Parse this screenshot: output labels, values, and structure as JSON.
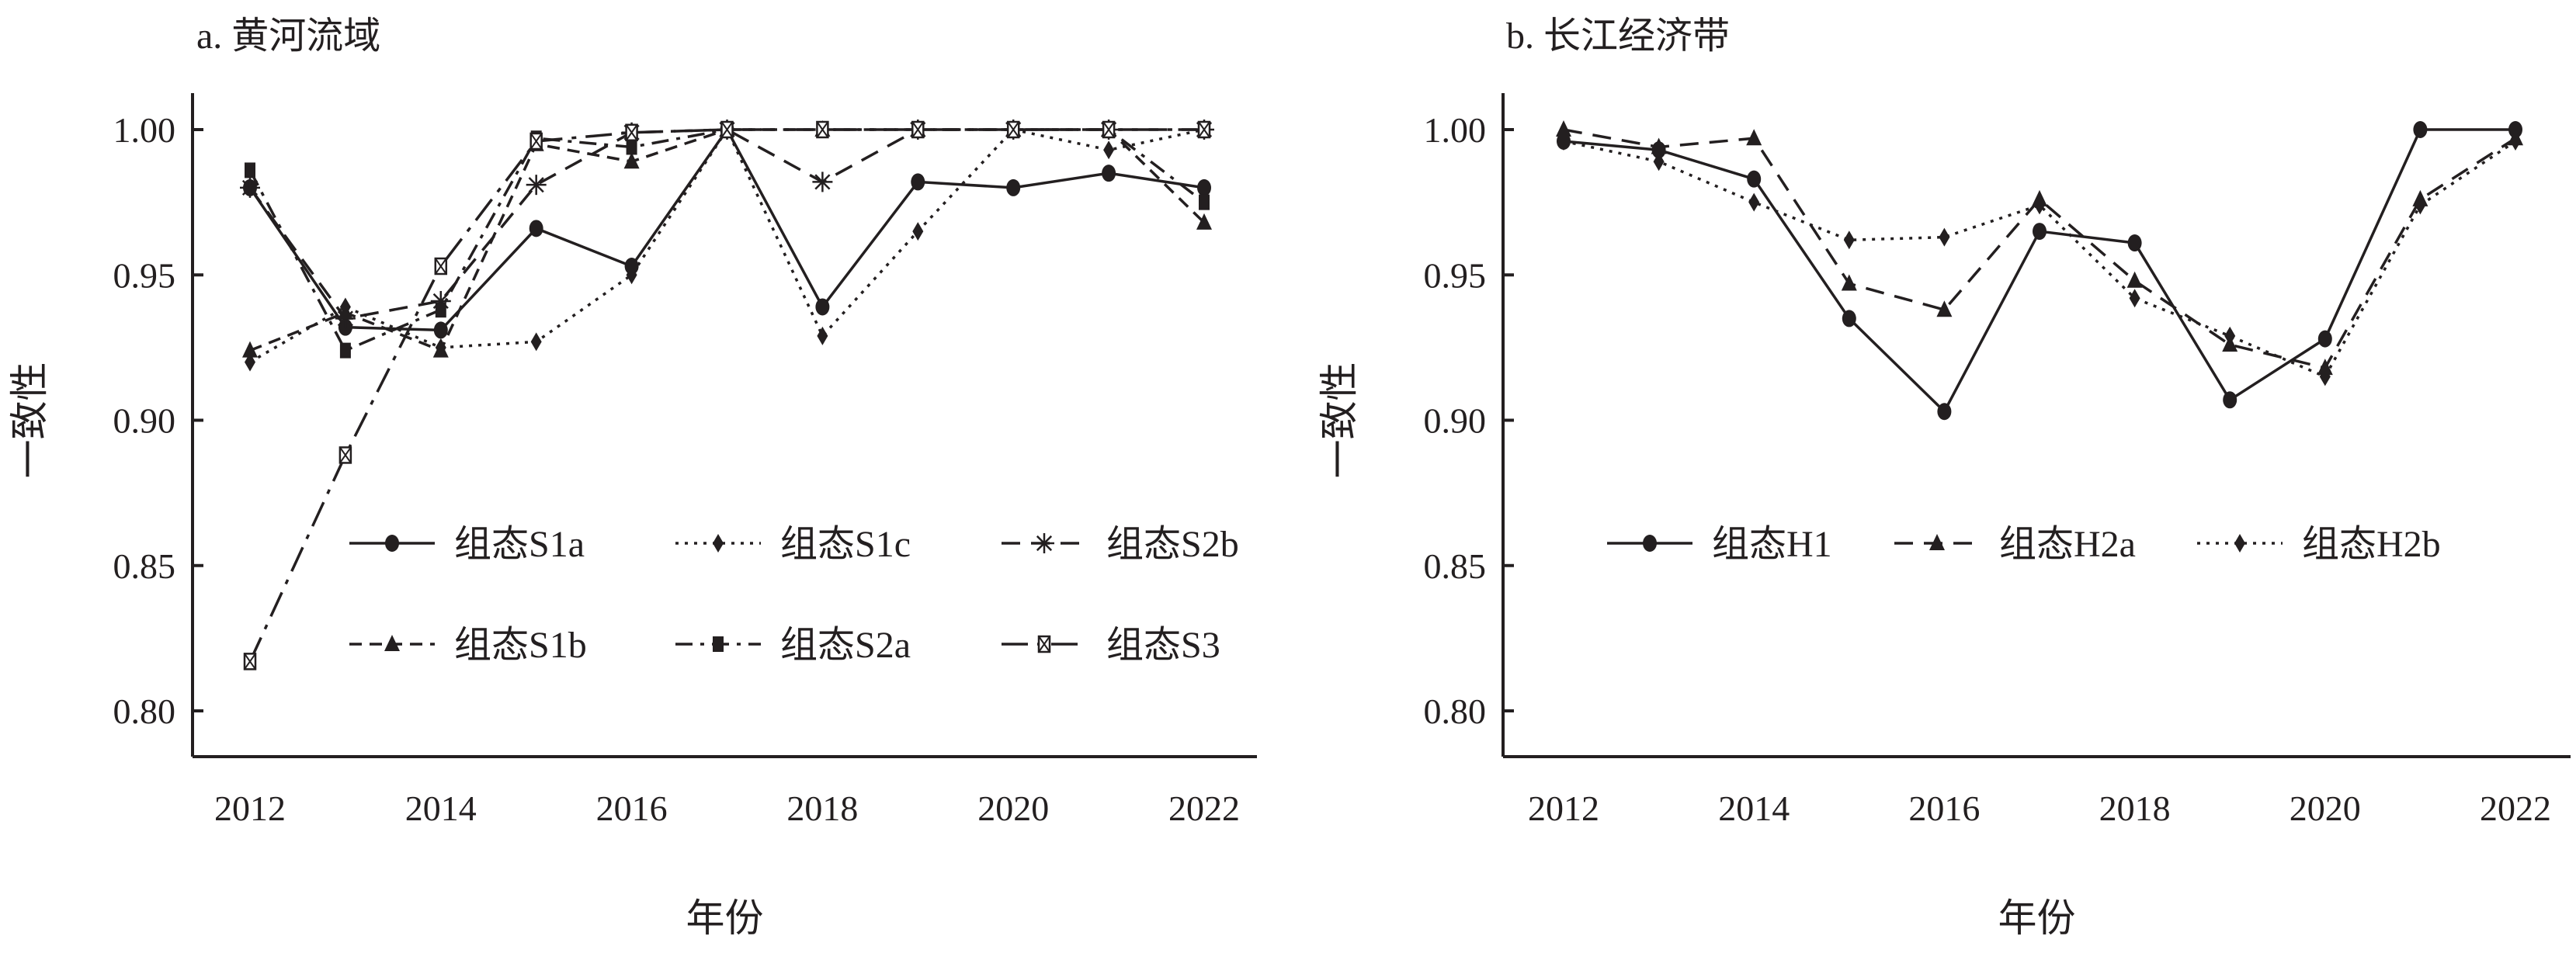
{
  "chart_data": [
    {
      "type": "line",
      "title": "a. 黄河流域",
      "xlabel": "年份",
      "ylabel": "一致性",
      "ylim": [
        0.79,
        1.02
      ],
      "yticks": [
        "0.80",
        "0.85",
        "0.90",
        "0.95",
        "1.00"
      ],
      "xticks": [
        "2012",
        "2014",
        "2016",
        "2018",
        "2020",
        "2022"
      ],
      "x": [
        2012,
        2013,
        2014,
        2015,
        2016,
        2017,
        2018,
        2019,
        2020,
        2021,
        2022
      ],
      "legend_position": "center-right",
      "series": [
        {
          "name": "组态S1a",
          "marker": "circle",
          "dash": "solid",
          "values": [
            0.98,
            0.932,
            0.931,
            0.966,
            0.953,
            1.0,
            0.939,
            0.982,
            0.98,
            0.985,
            0.98
          ]
        },
        {
          "name": "组态S1c",
          "marker": "diamond",
          "dash": "dotted",
          "values": [
            0.92,
            0.939,
            0.925,
            0.927,
            0.95,
            1.0,
            0.929,
            0.965,
            1.0,
            0.993,
            1.0
          ]
        },
        {
          "name": "组态S2b",
          "marker": "star",
          "dash": "dashed",
          "values": [
            0.98,
            0.935,
            0.941,
            0.981,
            0.999,
            1.0,
            0.982,
            1.0,
            1.0,
            1.0,
            1.0
          ]
        },
        {
          "name": "组态S1b",
          "marker": "triangle",
          "dash": "shortdash",
          "values": [
            0.924,
            0.937,
            0.924,
            0.995,
            0.989,
            1.0,
            1.0,
            1.0,
            1.0,
            1.0,
            0.968
          ]
        },
        {
          "name": "组态S2a",
          "marker": "square",
          "dash": "dashdot",
          "values": [
            0.986,
            0.924,
            0.938,
            0.997,
            0.994,
            1.0,
            1.0,
            1.0,
            1.0,
            1.0,
            0.975
          ]
        },
        {
          "name": "组态S3",
          "marker": "boxx",
          "dash": "longdashdot",
          "values": [
            0.817,
            0.888,
            0.953,
            0.996,
            0.999,
            1.0,
            1.0,
            1.0,
            1.0,
            1.0,
            1.0
          ]
        }
      ]
    },
    {
      "type": "line",
      "title": "b. 长江经济带",
      "xlabel": "年份",
      "ylabel": "一致性",
      "ylim": [
        0.79,
        1.02
      ],
      "yticks": [
        "0.80",
        "0.85",
        "0.90",
        "0.95",
        "1.00"
      ],
      "xticks": [
        "2012",
        "2014",
        "2016",
        "2018",
        "2020",
        "2022"
      ],
      "x": [
        2012,
        2013,
        2014,
        2015,
        2016,
        2017,
        2018,
        2019,
        2020,
        2021,
        2022
      ],
      "legend_position": "center",
      "series": [
        {
          "name": "组态H1",
          "marker": "circle",
          "dash": "solid",
          "values": [
            0.996,
            0.993,
            0.983,
            0.935,
            0.903,
            0.965,
            0.961,
            0.907,
            0.928,
            1.0,
            1.0
          ]
        },
        {
          "name": "组态H2a",
          "marker": "triangle",
          "dash": "dashed",
          "values": [
            1.0,
            0.994,
            0.997,
            0.947,
            0.938,
            0.976,
            0.948,
            0.926,
            0.918,
            0.976,
            0.997
          ]
        },
        {
          "name": "组态H2b",
          "marker": "diamond",
          "dash": "dotted",
          "values": [
            0.996,
            0.989,
            0.975,
            0.962,
            0.963,
            0.974,
            0.942,
            0.929,
            0.915,
            0.974,
            0.996
          ]
        }
      ]
    }
  ],
  "colors": {
    "ink": "#231f20"
  }
}
